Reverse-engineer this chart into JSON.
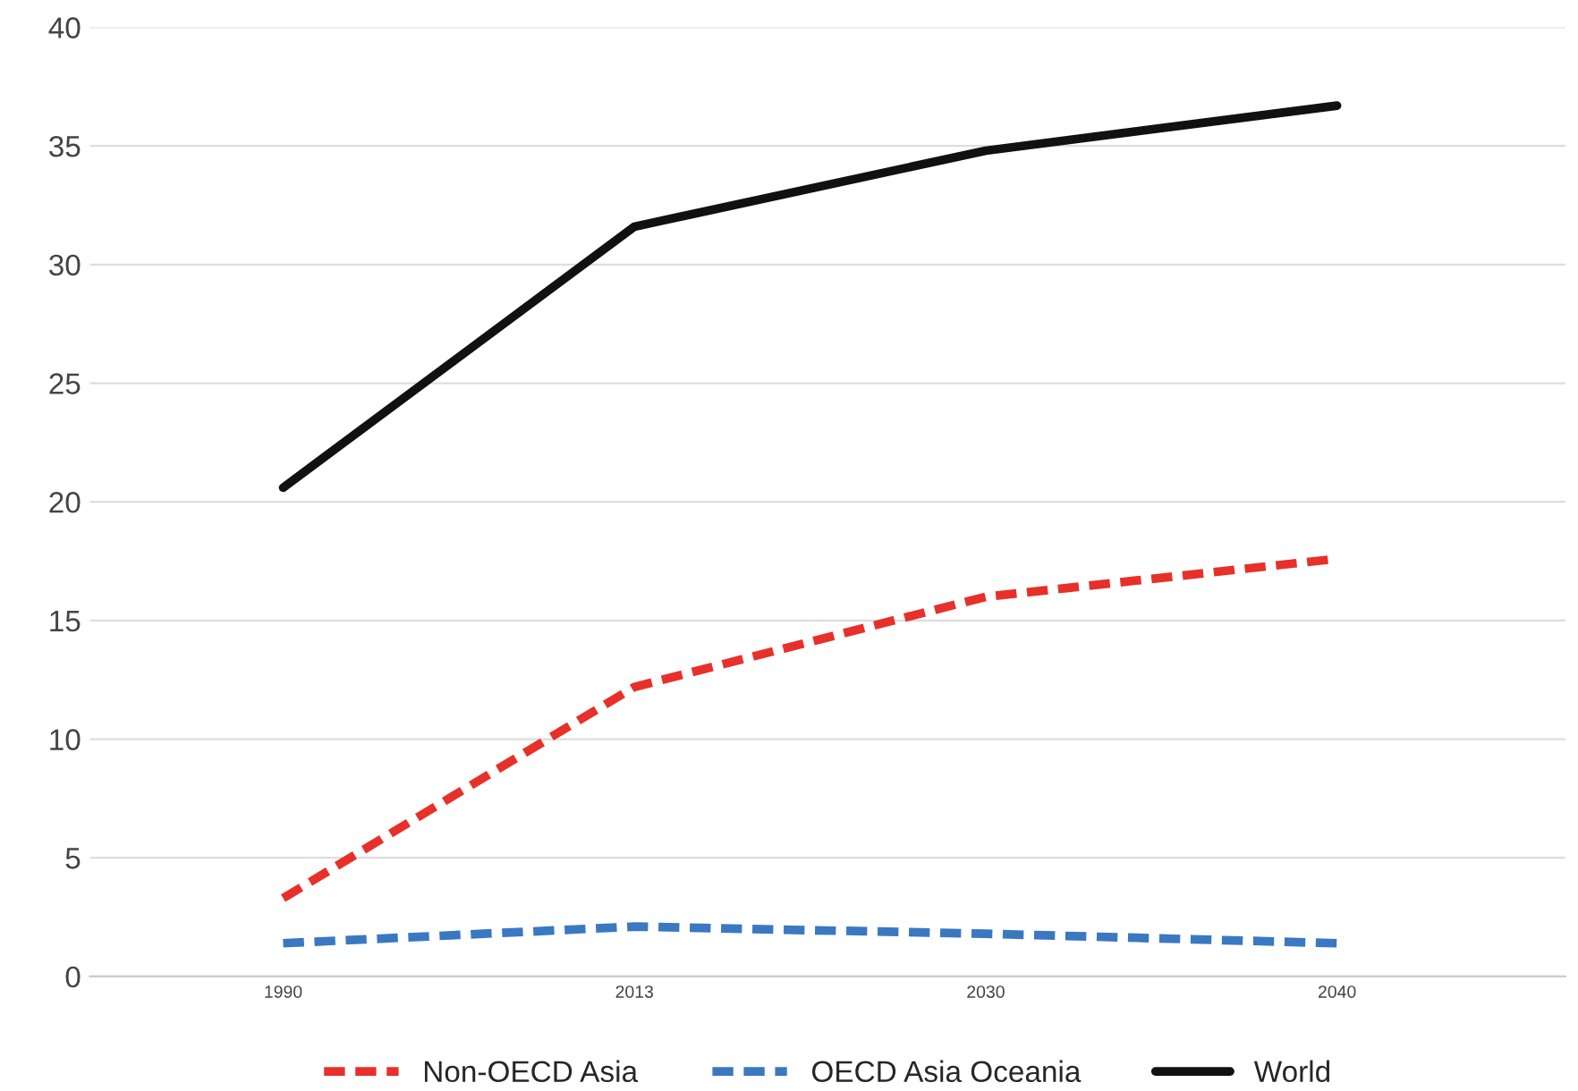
{
  "chart_data": {
    "type": "line",
    "categories": [
      "1990",
      "2013",
      "2030",
      "2040"
    ],
    "series": [
      {
        "name": "Non-OECD Asia",
        "color": "#e8302a",
        "line_style": "dashed",
        "values": [
          3.3,
          12.2,
          16.0,
          17.6
        ]
      },
      {
        "name": "OECD Asia Oceania",
        "color": "#3a78c2",
        "line_style": "dashed",
        "values": [
          1.4,
          2.1,
          1.8,
          1.4
        ]
      },
      {
        "name": "World",
        "color": "#111111",
        "line_style": "solid",
        "values": [
          20.6,
          31.6,
          34.8,
          36.7
        ]
      }
    ],
    "ylim": [
      0,
      40
    ],
    "yticks": [
      0,
      5,
      10,
      15,
      20,
      25,
      30,
      35,
      40
    ],
    "grid": "y",
    "legend": "bottom",
    "marker": "none"
  }
}
